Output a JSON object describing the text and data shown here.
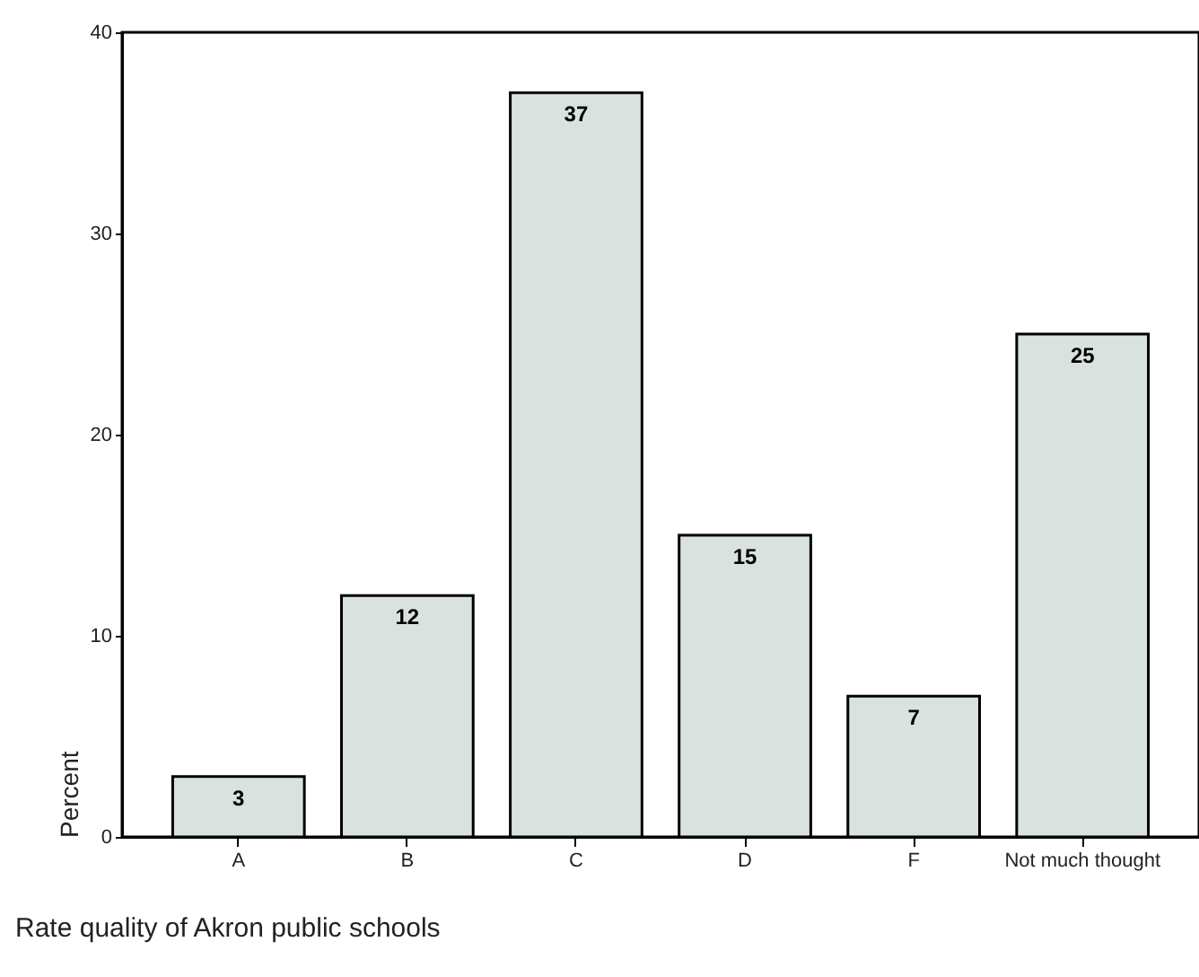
{
  "chart_data": {
    "type": "bar",
    "xlabel": "Rate quality of Akron public schools",
    "ylabel": "Percent",
    "categories": [
      "A",
      "B",
      "C",
      "D",
      "F",
      "Not much thought"
    ],
    "values": [
      3,
      12,
      37,
      15,
      7,
      25
    ],
    "color": "#d9e2de",
    "ylim": [
      0,
      40
    ],
    "yticks": [
      0,
      10,
      20,
      30,
      40
    ],
    "grid": false,
    "data_labels": true
  }
}
